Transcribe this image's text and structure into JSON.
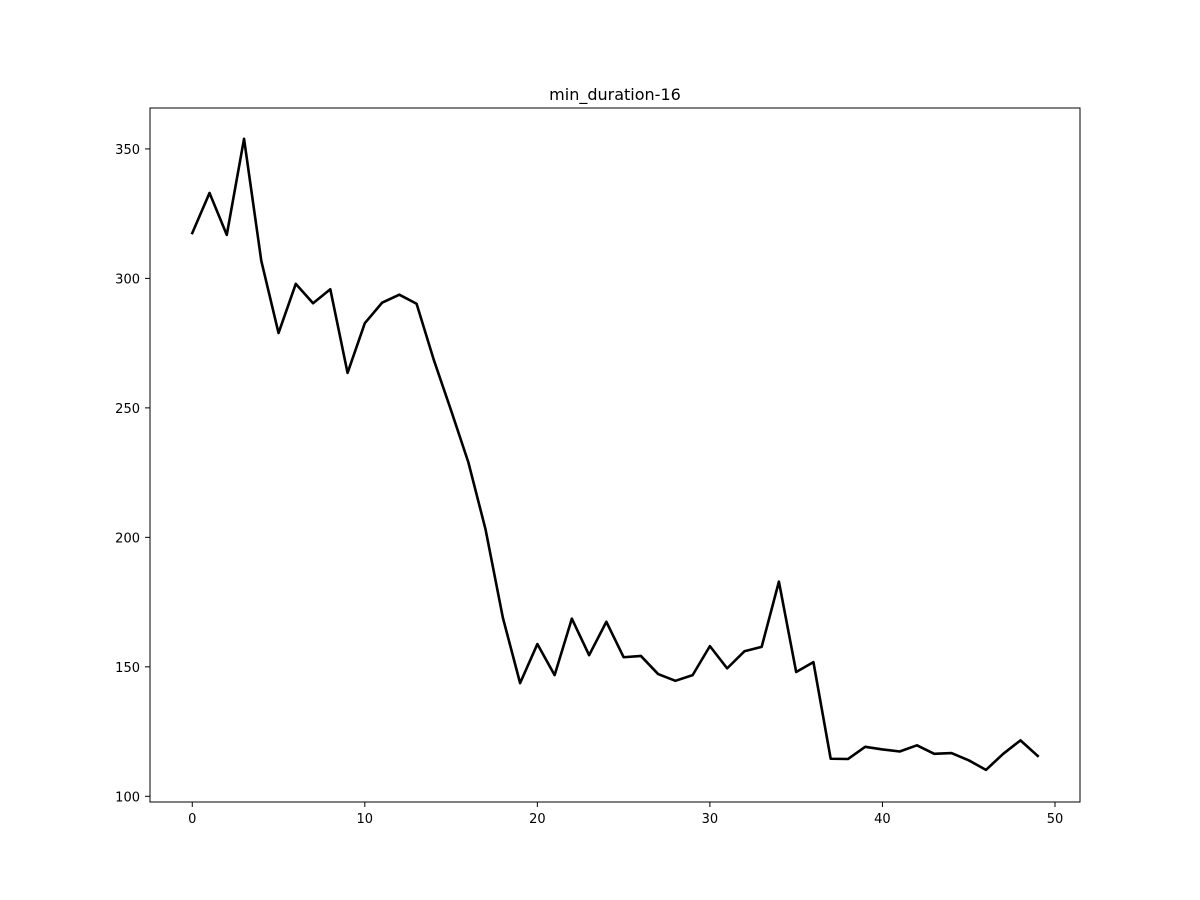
{
  "chart_data": {
    "type": "line",
    "title": "min_duration-16",
    "xlabel": "",
    "ylabel": "",
    "xlim": [
      -2.45,
      51.45
    ],
    "ylim": [
      97.8,
      365.8
    ],
    "xticks": [
      0,
      10,
      20,
      30,
      40,
      50
    ],
    "yticks": [
      100,
      150,
      200,
      250,
      300,
      350
    ],
    "grid": false,
    "legend": "none",
    "series": [
      {
        "color": "#000000",
        "x": [
          0,
          1,
          2,
          3,
          4,
          5,
          6,
          7,
          8,
          9,
          10,
          11,
          12,
          13,
          14,
          15,
          16,
          17,
          18,
          19,
          20,
          21,
          22,
          23,
          24,
          25,
          26,
          27,
          28,
          29,
          30,
          31,
          32,
          33,
          34,
          35,
          36,
          37,
          38,
          39,
          40,
          41,
          42,
          43,
          44,
          45,
          46,
          47,
          48,
          49
        ],
        "y": [
          317.5,
          333.0,
          316.8,
          353.9,
          306.8,
          278.9,
          297.9,
          290.4,
          295.8,
          263.5,
          282.7,
          290.6,
          293.7,
          290.2,
          268.5,
          249.0,
          229.0,
          203.0,
          169.0,
          143.7,
          158.8,
          146.8,
          168.6,
          154.5,
          167.4,
          153.7,
          154.2,
          147.2,
          144.6,
          146.8,
          158.0,
          149.4,
          156.0,
          157.7,
          182.9,
          148.0,
          151.8,
          114.5,
          114.4,
          119.1,
          118.1,
          117.3,
          119.7,
          116.4,
          116.7,
          113.9,
          110.2,
          116.4,
          121.6,
          115.6
        ]
      }
    ]
  }
}
